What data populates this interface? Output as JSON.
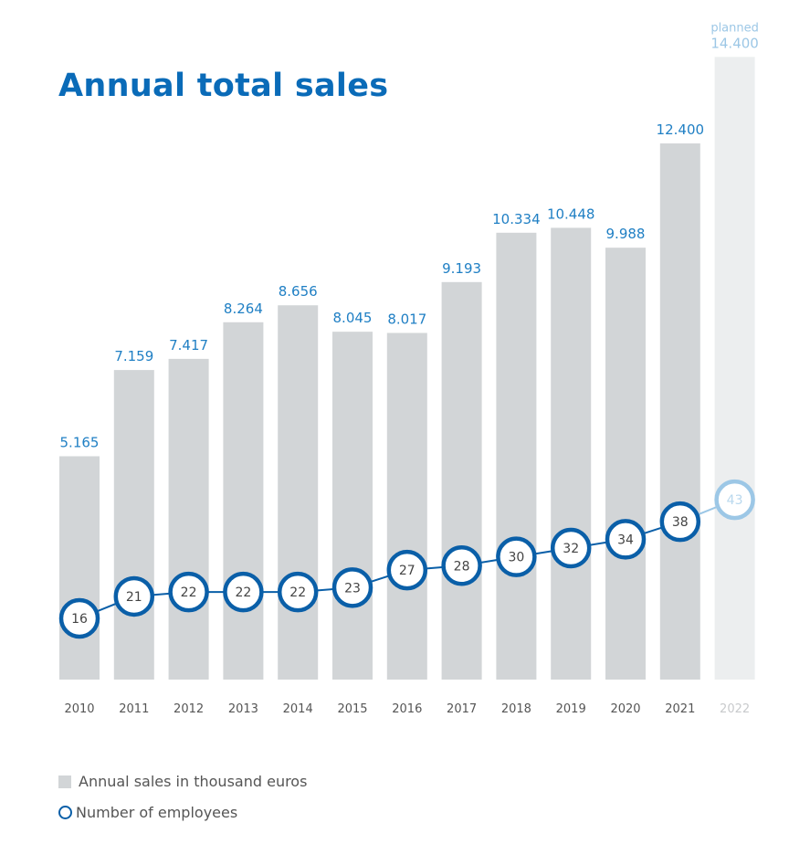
{
  "chart_data": {
    "type": "bar",
    "title": "Annual total sales",
    "categories": [
      "2010",
      "2011",
      "2012",
      "2013",
      "2014",
      "2015",
      "2016",
      "2017",
      "2018",
      "2019",
      "2020",
      "2021",
      "2022"
    ],
    "series": [
      {
        "name": "Annual sales in thousand euros",
        "type": "bar",
        "values": [
          5165,
          7159,
          7417,
          8264,
          8656,
          8045,
          8017,
          9193,
          10334,
          10448,
          9988,
          12400,
          14400
        ],
        "labels": [
          "5.165",
          "7.159",
          "7.417",
          "8.264",
          "8.656",
          "8.045",
          "8.017",
          "9.193",
          "10.334",
          "10.448",
          "9.988",
          "12.400",
          "14.400"
        ]
      },
      {
        "name": "Number of employees",
        "type": "line",
        "values": [
          16,
          21,
          22,
          22,
          22,
          23,
          27,
          28,
          30,
          32,
          34,
          38,
          43
        ]
      }
    ],
    "planned_index": 12,
    "planned_label": "planned",
    "colors": {
      "bar": "#d2d5d7",
      "bar_planned": "#eceeef",
      "value_label": "#1f7fc4",
      "value_label_planned": "#9cc7e6",
      "line": "#0a5fa8",
      "planned_accent": "#9cc7e6",
      "axis_label": "#555555",
      "axis_label_planned": "#c8cacc",
      "title": "#0a6bb8"
    },
    "grid": false,
    "legend_position": "bottom-left"
  }
}
